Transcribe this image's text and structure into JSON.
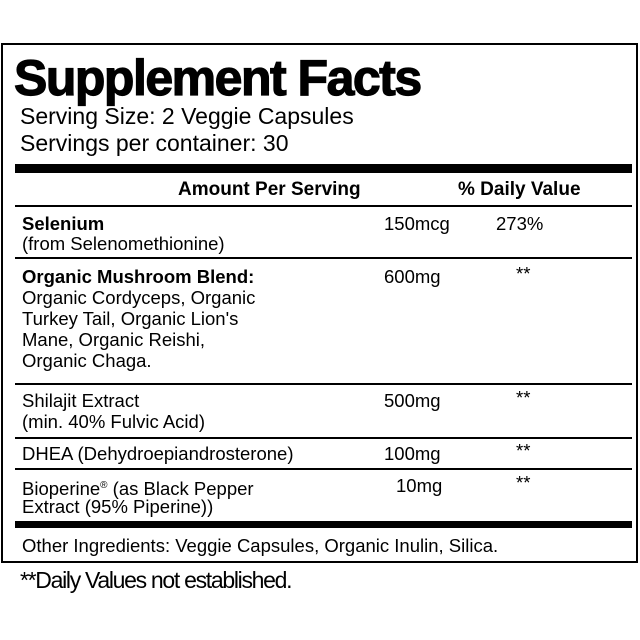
{
  "title": "Supplement Facts",
  "serving_size": "Serving Size: 2 Veggie Capsules",
  "servings_per_container": "Servings per container: 30",
  "headers": {
    "amount": "Amount Per Serving",
    "daily_value": "% Daily Value"
  },
  "rows": [
    {
      "name": "Selenium",
      "detail": "(from Selenomethionine)",
      "amount": "150mcg",
      "dv": "273%"
    },
    {
      "name": "Organic Mushroom Blend:",
      "detail_lines": [
        "Organic Cordyceps, Organic",
        "Turkey Tail, Organic Lion's",
        "Mane, Organic Reishi,",
        "Organic Chaga."
      ],
      "amount": "600mg",
      "dv": "**"
    },
    {
      "name": "Shilajit Extract",
      "detail": "(min. 40% Fulvic Acid)",
      "amount": "500mg",
      "dv": "**"
    },
    {
      "name": "DHEA (Dehydroepiandrosterone)",
      "amount": "100mg",
      "dv": "**"
    },
    {
      "name": "Bioperine",
      "name_mark": "®",
      "name_rest": " (as Black Pepper",
      "detail": "Extract (95% Piperine))",
      "amount": "10mg",
      "dv": "**"
    }
  ],
  "other_ingredients": "Other Ingredients: Veggie Capsules, Organic Inulin, Silica.",
  "footnote": "**Daily Values not established."
}
